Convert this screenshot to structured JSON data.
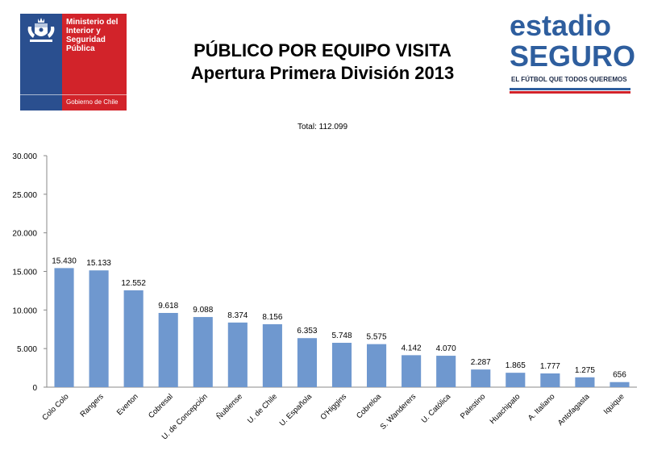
{
  "header": {
    "title_line1": "PÚBLICO POR EQUIPO VISITA",
    "title_line2": "Apertura Primera División 2013",
    "total_label": "Total: 112.099"
  },
  "gov_logo": {
    "ministry": "Ministerio del Interior y Seguridad Pública",
    "subtitle": "Gobierno de Chile",
    "colors": {
      "blue": "#2a4f8f",
      "red": "#d2232a"
    }
  },
  "brand": {
    "line1": "estadio",
    "line2": "SEGURO",
    "tagline": "EL FÚTBOL QUE TODOS QUEREMOS"
  },
  "chart_data": {
    "type": "bar",
    "categories": [
      "Colo Colo",
      "Rangers",
      "Everton",
      "Cobresal",
      "U. de Concepción",
      "Ñublense",
      "U. de Chile",
      "U. Española",
      "O'Higgins",
      "Cobreloa",
      "S. Wanderers",
      "U. Católica",
      "Palestino",
      "Huachipato",
      "A. Italiano",
      "Antofagasta",
      "Iquique"
    ],
    "values": [
      15430,
      15133,
      12552,
      9618,
      9088,
      8374,
      8156,
      6353,
      5748,
      5575,
      4142,
      4070,
      2287,
      1865,
      1777,
      1275,
      656
    ],
    "value_labels": [
      "15.430",
      "15.133",
      "12.552",
      "9.618",
      "9.088",
      "8.374",
      "8.156",
      "6.353",
      "5.748",
      "5.575",
      "4.142",
      "4.070",
      "2.287",
      "1.865",
      "1.777",
      "1.275",
      "656"
    ],
    "y_ticks": [
      0,
      5000,
      10000,
      15000,
      20000,
      25000,
      30000
    ],
    "y_tick_labels": [
      "0",
      "5.000",
      "10.000",
      "15.000",
      "20.000",
      "25.000",
      "30.000"
    ],
    "ylim": [
      0,
      30000
    ],
    "bar_color": "#6f98cf",
    "grid": false
  }
}
